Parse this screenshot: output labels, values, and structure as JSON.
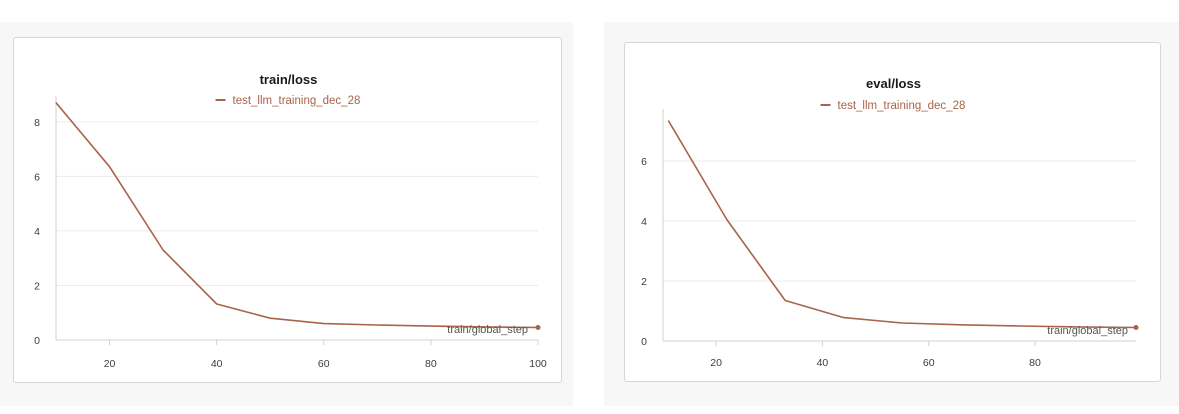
{
  "colors": {
    "series": "#a8644a",
    "grid": "#ececec",
    "axis": "#d0d0d0"
  },
  "chart_data": [
    {
      "type": "line",
      "title": "train/loss",
      "xlabel": "train/global_step",
      "ylabel": "",
      "xlim": [
        10,
        100
      ],
      "ylim": [
        0,
        8.8
      ],
      "xticks": [
        "20",
        "40",
        "60",
        "80",
        "100"
      ],
      "yticks": [
        "0",
        "2",
        "4",
        "6",
        "8"
      ],
      "grid": true,
      "legend": "top-center",
      "series": [
        {
          "name": "test_llm_training_dec_28",
          "x": [
            10,
            20,
            30,
            40,
            50,
            60,
            70,
            80,
            90,
            100
          ],
          "y": [
            8.7,
            6.35,
            3.3,
            1.32,
            0.8,
            0.6,
            0.55,
            0.51,
            0.48,
            0.46
          ]
        }
      ]
    },
    {
      "type": "line",
      "title": "eval/loss",
      "xlabel": "train/global_step",
      "ylabel": "",
      "xlim": [
        10,
        99
      ],
      "ylim": [
        0,
        7.6
      ],
      "xticks": [
        "20",
        "40",
        "60",
        "80"
      ],
      "yticks": [
        "0",
        "2",
        "4",
        "6"
      ],
      "grid": true,
      "legend": "top-center",
      "series": [
        {
          "name": "test_llm_training_dec_28",
          "x": [
            11,
            22,
            33,
            44,
            55,
            66,
            77,
            88,
            99
          ],
          "y": [
            7.35,
            4.05,
            1.35,
            0.78,
            0.6,
            0.54,
            0.5,
            0.47,
            0.45
          ]
        }
      ]
    }
  ]
}
